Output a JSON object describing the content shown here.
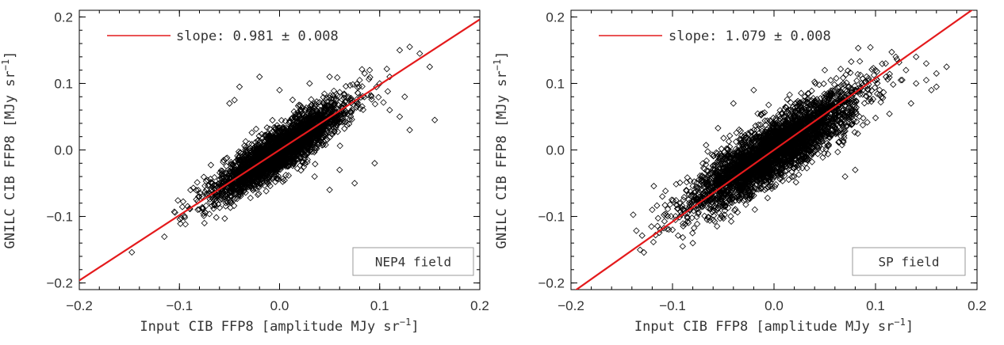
{
  "chart_data": [
    {
      "type": "scatter",
      "panel": "left",
      "xlabel": "Input CIB FFP8 [amplitude MJy sr",
      "xlabel_sup": "-1",
      "xlabel_end": "]",
      "ylabel": "GNILC CIB FFP8 [MJy sr",
      "ylabel_sup": "-1",
      "ylabel_end": "]",
      "xlim": [
        -0.2,
        0.2
      ],
      "ylim": [
        -0.21,
        0.21
      ],
      "xticks": [
        "-0.2",
        "-0.1",
        "0.0",
        "0.1",
        "0.2"
      ],
      "xtick_values": [
        -0.2,
        -0.1,
        0.0,
        0.1,
        0.2
      ],
      "yticks": [
        "-0.2",
        "-0.1",
        "0.0",
        "0.1",
        "0.2"
      ],
      "ytick_values": [
        -0.2,
        -0.1,
        0.0,
        0.1,
        0.2
      ],
      "legend_label": "slope: 0.981",
      "legend_pm": "± 0.008",
      "slope": 0.981,
      "field_label": "NEP4 field",
      "point_cloud": {
        "count": 3200,
        "sigma_x": 0.032,
        "slope": 0.95,
        "scatter": 0.016,
        "seed": 7
      },
      "series": [
        {
          "points": [
            [
              -0.09,
              -0.088
            ],
            [
              -0.075,
              -0.11
            ],
            [
              -0.08,
              -0.07
            ],
            [
              0.03,
              0.1
            ],
            [
              -0.04,
              0.095
            ],
            [
              -0.02,
              0.11
            ],
            [
              0.05,
              0.11
            ],
            [
              0.12,
              0.15
            ],
            [
              0.13,
              0.155
            ],
            [
              0.14,
              0.145
            ],
            [
              0.15,
              0.125
            ],
            [
              0.155,
              0.045
            ],
            [
              0.11,
              0.11
            ],
            [
              0.125,
              0.08
            ],
            [
              0.085,
              0.115
            ],
            [
              0.09,
              0.12
            ],
            [
              0.1,
              0.1
            ],
            [
              0.095,
              -0.02
            ],
            [
              0.075,
              -0.05
            ],
            [
              0.05,
              -0.06
            ],
            [
              0.035,
              -0.04
            ],
            [
              -0.05,
              0.07
            ],
            [
              -0.045,
              0.075
            ],
            [
              0.06,
              -0.03
            ],
            [
              0.13,
              0.03
            ],
            [
              0.11,
              0.06
            ],
            [
              0.12,
              0.05
            ],
            [
              0.08,
              0.105
            ],
            [
              -0.06,
              -0.05
            ],
            [
              0.0,
              0.09
            ]
          ]
        }
      ]
    },
    {
      "type": "scatter",
      "panel": "right",
      "xlabel": "Input CIB FFP8 [amplitude MJy sr",
      "xlabel_sup": "-1",
      "xlabel_end": "]",
      "ylabel": "GNILC CIB FFP8 [MJy sr",
      "ylabel_sup": "-1",
      "ylabel_end": "]",
      "xlim": [
        -0.2,
        0.2
      ],
      "ylim": [
        -0.21,
        0.21
      ],
      "xticks": [
        "-0.2",
        "-0.1",
        "0.0",
        "0.1",
        "0.2"
      ],
      "xtick_values": [
        -0.2,
        -0.1,
        0.0,
        0.1,
        0.2
      ],
      "yticks": [
        "-0.2",
        "-0.1",
        "0.0",
        "0.1",
        "0.2"
      ],
      "ytick_values": [
        -0.2,
        -0.1,
        0.0,
        0.1,
        0.2
      ],
      "legend_label": "slope: 1.079",
      "legend_pm": "± 0.008",
      "slope": 1.079,
      "field_label": "SP field",
      "point_cloud": {
        "count": 3800,
        "sigma_x": 0.04,
        "slope": 0.93,
        "scatter": 0.022,
        "seed": 11
      },
      "series": [
        {
          "points": [
            [
              -0.12,
              -0.09
            ],
            [
              -0.1,
              -0.12
            ],
            [
              -0.09,
              -0.145
            ],
            [
              -0.08,
              -0.14
            ],
            [
              0.17,
              0.125
            ],
            [
              0.16,
              0.115
            ],
            [
              0.15,
              0.13
            ],
            [
              0.14,
              0.14
            ],
            [
              0.13,
              0.12
            ],
            [
              0.12,
              0.14
            ],
            [
              0.11,
              0.13
            ],
            [
              0.1,
              0.12
            ],
            [
              0.155,
              0.09
            ],
            [
              0.135,
              0.07
            ],
            [
              0.14,
              0.1
            ],
            [
              0.05,
              0.12
            ],
            [
              -0.02,
              0.09
            ],
            [
              -0.04,
              0.07
            ],
            [
              0.08,
              -0.03
            ],
            [
              0.07,
              -0.04
            ],
            [
              -0.11,
              -0.07
            ],
            [
              0.15,
              0.105
            ],
            [
              0.16,
              0.095
            ],
            [
              0.125,
              0.105
            ]
          ]
        }
      ]
    }
  ]
}
